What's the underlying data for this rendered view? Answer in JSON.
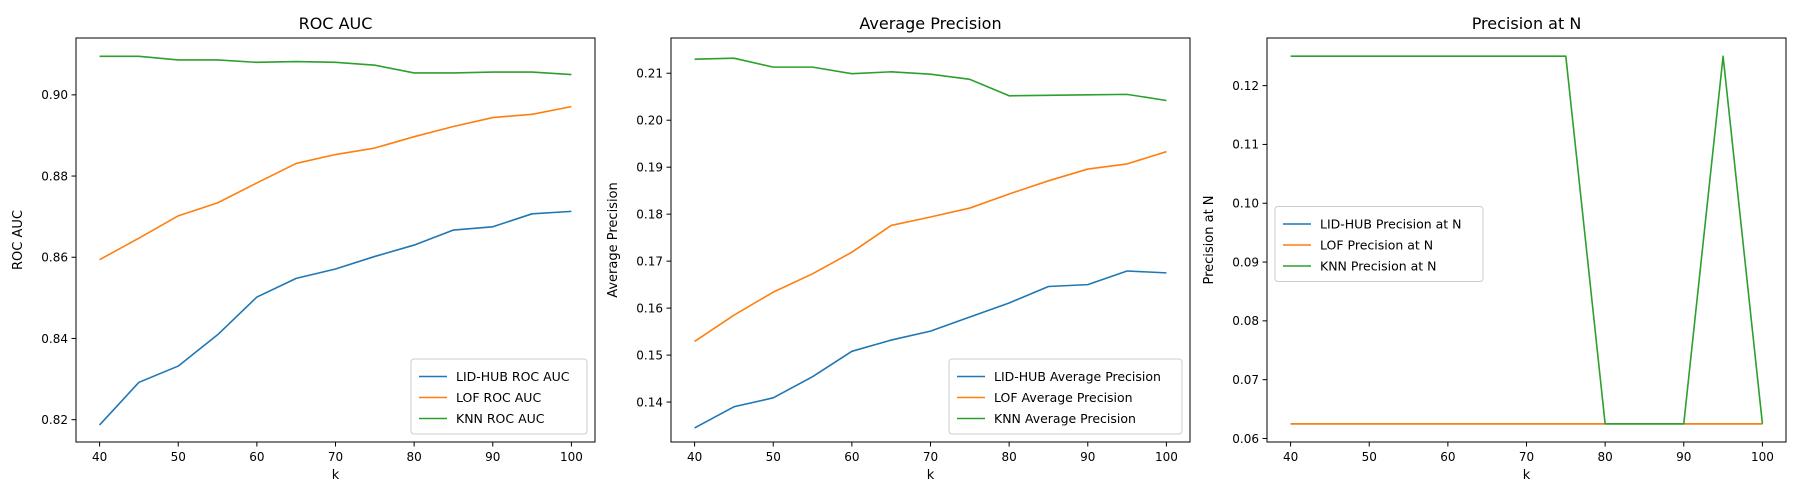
{
  "colors": {
    "lid": "#1f77b4",
    "lof": "#ff7f0e",
    "knn": "#2ca02c"
  },
  "chart_data": [
    {
      "type": "line",
      "title": "ROC AUC",
      "xlabel": "k",
      "ylabel": "ROC AUC",
      "x": [
        40,
        45,
        50,
        55,
        60,
        65,
        70,
        75,
        80,
        85,
        90,
        95,
        100
      ],
      "xlim": [
        37,
        103
      ],
      "xticks": [
        40,
        50,
        60,
        70,
        80,
        90,
        100
      ],
      "ylim": [
        0.8145,
        0.914
      ],
      "yticks": [
        0.82,
        0.84,
        0.86,
        0.88,
        0.9
      ],
      "ytick_labels": [
        "0.82",
        "0.84",
        "0.86",
        "0.88",
        "0.90"
      ],
      "legend": "lower-right",
      "series": [
        {
          "name": "LID-HUB ROC AUC",
          "color_key": "lid",
          "values": [
            0.8187,
            0.8292,
            0.8332,
            0.8409,
            0.8502,
            0.8548,
            0.8571,
            0.8602,
            0.863,
            0.8667,
            0.8675,
            0.8707,
            0.8713
          ]
        },
        {
          "name": "LOF ROC AUC",
          "color_key": "lof",
          "values": [
            0.8594,
            0.8647,
            0.8702,
            0.8734,
            0.8783,
            0.8831,
            0.8853,
            0.8869,
            0.8897,
            0.8922,
            0.8944,
            0.8952,
            0.8971
          ]
        },
        {
          "name": "KNN ROC AUC",
          "color_key": "knn",
          "values": [
            0.9095,
            0.9095,
            0.9086,
            0.9086,
            0.908,
            0.9082,
            0.908,
            0.9073,
            0.9054,
            0.9054,
            0.9056,
            0.9056,
            0.905
          ]
        }
      ]
    },
    {
      "type": "line",
      "title": "Average Precision",
      "xlabel": "k",
      "ylabel": "Average Precision",
      "x": [
        40,
        45,
        50,
        55,
        60,
        65,
        70,
        75,
        80,
        85,
        90,
        95,
        100
      ],
      "xlim": [
        37,
        103
      ],
      "xticks": [
        40,
        50,
        60,
        70,
        80,
        90,
        100
      ],
      "ylim": [
        0.1315,
        0.2175
      ],
      "yticks": [
        0.14,
        0.15,
        0.16,
        0.17,
        0.18,
        0.19,
        0.2,
        0.21
      ],
      "ytick_labels": [
        "0.14",
        "0.15",
        "0.16",
        "0.17",
        "0.18",
        "0.19",
        "0.20",
        "0.21"
      ],
      "legend": "lower-right",
      "series": [
        {
          "name": "LID-HUB Average Precision",
          "color_key": "lid",
          "values": [
            0.1345,
            0.139,
            0.1409,
            0.1454,
            0.1508,
            0.1532,
            0.1551,
            0.1581,
            0.1611,
            0.1646,
            0.165,
            0.1679,
            0.1675
          ]
        },
        {
          "name": "LOF Average Precision",
          "color_key": "lof",
          "values": [
            0.1529,
            0.1585,
            0.1634,
            0.1673,
            0.1719,
            0.1776,
            0.1794,
            0.1813,
            0.1843,
            0.1871,
            0.1896,
            0.1907,
            0.1933
          ]
        },
        {
          "name": "KNN Average Precision",
          "color_key": "knn",
          "values": [
            0.213,
            0.2132,
            0.2113,
            0.2113,
            0.2099,
            0.2103,
            0.2098,
            0.2087,
            0.2052,
            0.2053,
            0.2054,
            0.2055,
            0.2042
          ]
        }
      ]
    },
    {
      "type": "line",
      "title": "Precision at N",
      "xlabel": "k",
      "ylabel": "Precision at N",
      "x": [
        40,
        45,
        50,
        55,
        60,
        65,
        70,
        75,
        80,
        85,
        90,
        95,
        100
      ],
      "xlim": [
        37,
        103
      ],
      "xticks": [
        40,
        50,
        60,
        70,
        80,
        90,
        100
      ],
      "ylim": [
        0.0594,
        0.1281
      ],
      "yticks": [
        0.06,
        0.07,
        0.08,
        0.09,
        0.1,
        0.11,
        0.12
      ],
      "ytick_labels": [
        "0.06",
        "0.07",
        "0.08",
        "0.09",
        "0.10",
        "0.11",
        "0.12"
      ],
      "legend": "center-left",
      "series": [
        {
          "name": "LID-HUB Precision at N",
          "color_key": "lid",
          "values": [
            0.0625,
            0.0625,
            0.0625,
            0.0625,
            0.0625,
            0.0625,
            0.0625,
            0.0625,
            0.0625,
            0.0625,
            0.0625,
            0.0625,
            0.0625
          ]
        },
        {
          "name": "LOF Precision at N",
          "color_key": "lof",
          "values": [
            0.0625,
            0.0625,
            0.0625,
            0.0625,
            0.0625,
            0.0625,
            0.0625,
            0.0625,
            0.0625,
            0.0625,
            0.0625,
            0.0625,
            0.0625
          ]
        },
        {
          "name": "KNN Precision at N",
          "color_key": "knn",
          "values": [
            0.125,
            0.125,
            0.125,
            0.125,
            0.125,
            0.125,
            0.125,
            0.125,
            0.0625,
            0.0625,
            0.0625,
            0.125,
            0.0625
          ]
        }
      ]
    }
  ]
}
